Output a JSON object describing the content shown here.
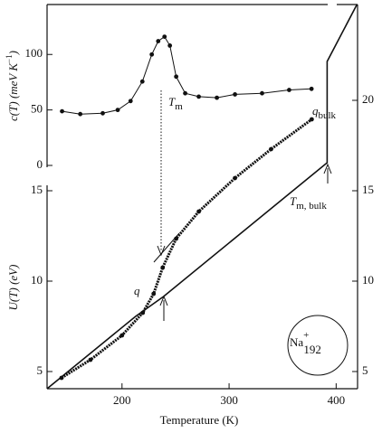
{
  "chart_data": [
    {
      "type": "scatter",
      "ylabel": {
        "main": "c(T) (meV K",
        "sup": "−1",
        "end": ")"
      },
      "xlim": [
        130,
        420
      ],
      "ylim": [
        0,
        145
      ],
      "yticks": [
        0,
        50,
        100
      ],
      "series": [
        {
          "color": "#111111",
          "style": "dots-fit",
          "x": [
            144,
            161,
            182,
            196,
            208,
            219,
            227.8,
            233.8,
            239.7,
            244.7,
            250.6,
            259,
            271.7,
            288.6,
            305.5,
            330.8,
            356.1,
            377
          ],
          "values": [
            48.8,
            46.3,
            47,
            50,
            58,
            75.6,
            100,
            112,
            116,
            108,
            80,
            65,
            62,
            61,
            64,
            65,
            68,
            69
          ]
        }
      ],
      "annotation": {
        "main": "T",
        "sub": "m"
      }
    },
    {
      "type": "line",
      "xlabel": "Temperature (K)",
      "ylabel": "U(T) (eV)",
      "xlim": [
        130,
        420
      ],
      "xticks": [
        200,
        300,
        400
      ],
      "ylim": [
        4.05,
        25.3
      ],
      "yticks": [
        5,
        10,
        15
      ],
      "y2lim": [
        4.05,
        25.3
      ],
      "y2ticks": [
        5,
        10,
        15,
        20
      ],
      "series": [
        {
          "color": "#111111",
          "style": "dots",
          "x": [
            143.5,
            170.5,
            200,
            219.4,
            229.5,
            238,
            250.6,
            271.7,
            305.5,
            339.2,
            377.2
          ],
          "values": [
            4.65,
            5.65,
            7.0,
            8.25,
            9.3,
            10.75,
            12.35,
            13.85,
            15.7,
            17.3,
            18.95
          ]
        },
        {
          "color": "#111111",
          "style": "line",
          "axis": "y2",
          "x": [
            130,
            212.7,
            238.8,
            391.6,
            391.6,
            419.4
          ],
          "values": [
            4.05,
            8.05,
            9.15,
            16.55,
            22.15,
            25.3
          ]
        }
      ],
      "annotations": {
        "q": "q",
        "q_bulk": {
          "main": "q",
          "sub": "bulk"
        },
        "tm_bulk": {
          "main": "T",
          "sub": "m, bulk"
        },
        "cluster": {
          "main": "Na",
          "sup": "+",
          "sub": "192"
        }
      }
    }
  ]
}
